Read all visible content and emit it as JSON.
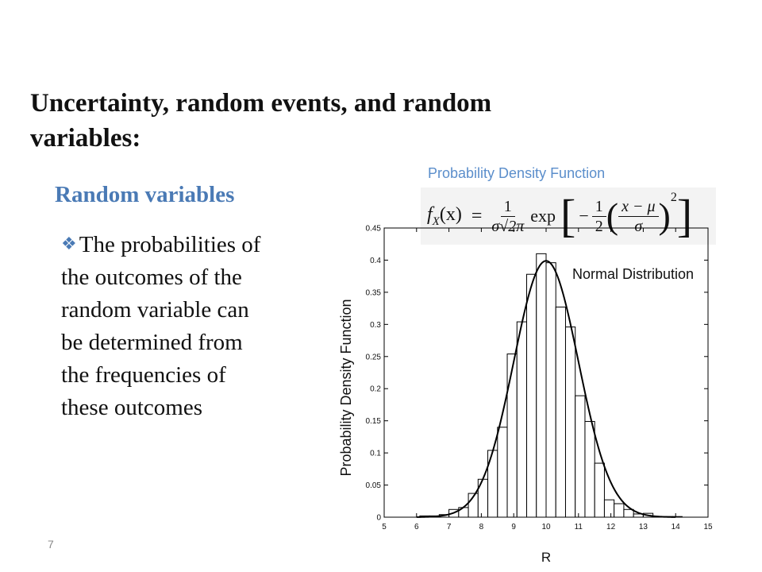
{
  "slide": {
    "title": "Uncertainty, random events, and random variables:",
    "subheading": "Random variables",
    "bullet_icon": "diamond-bullet-icon",
    "bullet_lines": [
      "The probabilities of",
      "the outcomes of the",
      "random variable can",
      "be determined from",
      "the frequencies of",
      "these outcomes"
    ],
    "page_number": "7",
    "accent_color": "#4a7ab5"
  },
  "formula": {
    "label": "Probability Density Function",
    "lhs": "f",
    "lhs_sub": "X",
    "lhs_arg": "(x)",
    "equals": "=",
    "numerator": "1",
    "denominator": "σ√2π",
    "exp": "exp",
    "inner_frac_num": "1",
    "inner_frac_den": "2",
    "arg_num": "x − μ",
    "arg_den": "σ",
    "power": "2"
  },
  "chart_data": {
    "type": "bar",
    "subtype": "histogram with fitted normal density curve",
    "title": "",
    "xlabel": "R",
    "ylabel": "Probability Density Function",
    "curve_label": "Normal Distribution",
    "xlim": [
      5,
      15
    ],
    "ylim": [
      0,
      0.45
    ],
    "xticks": [
      5,
      6,
      7,
      8,
      9,
      10,
      11,
      12,
      13,
      14,
      15
    ],
    "yticks": [
      0,
      0.05,
      0.1,
      0.15,
      0.2,
      0.25,
      0.3,
      0.35,
      0.4,
      0.45
    ],
    "bin_width": 0.3,
    "bins": [
      {
        "x0": 6.1,
        "value": 0.002
      },
      {
        "x0": 6.4,
        "value": 0.002
      },
      {
        "x0": 6.7,
        "value": 0.004
      },
      {
        "x0": 7.0,
        "value": 0.012
      },
      {
        "x0": 7.3,
        "value": 0.015
      },
      {
        "x0": 7.6,
        "value": 0.037
      },
      {
        "x0": 7.9,
        "value": 0.059
      },
      {
        "x0": 8.2,
        "value": 0.104
      },
      {
        "x0": 8.5,
        "value": 0.14
      },
      {
        "x0": 8.8,
        "value": 0.254
      },
      {
        "x0": 9.1,
        "value": 0.304
      },
      {
        "x0": 9.4,
        "value": 0.378
      },
      {
        "x0": 9.7,
        "value": 0.41
      },
      {
        "x0": 10.0,
        "value": 0.396
      },
      {
        "x0": 10.3,
        "value": 0.327
      },
      {
        "x0": 10.6,
        "value": 0.296
      },
      {
        "x0": 10.9,
        "value": 0.189
      },
      {
        "x0": 11.2,
        "value": 0.149
      },
      {
        "x0": 11.5,
        "value": 0.084
      },
      {
        "x0": 11.8,
        "value": 0.027
      },
      {
        "x0": 12.1,
        "value": 0.021
      },
      {
        "x0": 12.4,
        "value": 0.012
      },
      {
        "x0": 12.7,
        "value": 0.005
      },
      {
        "x0": 13.0,
        "value": 0.006
      },
      {
        "x0": 13.3,
        "value": 0.001
      },
      {
        "x0": 13.6,
        "value": 0.001
      },
      {
        "x0": 13.9,
        "value": 0.001
      }
    ],
    "curve": {
      "mu": 10,
      "sigma": 1
    },
    "grid": false,
    "legend": "none"
  }
}
